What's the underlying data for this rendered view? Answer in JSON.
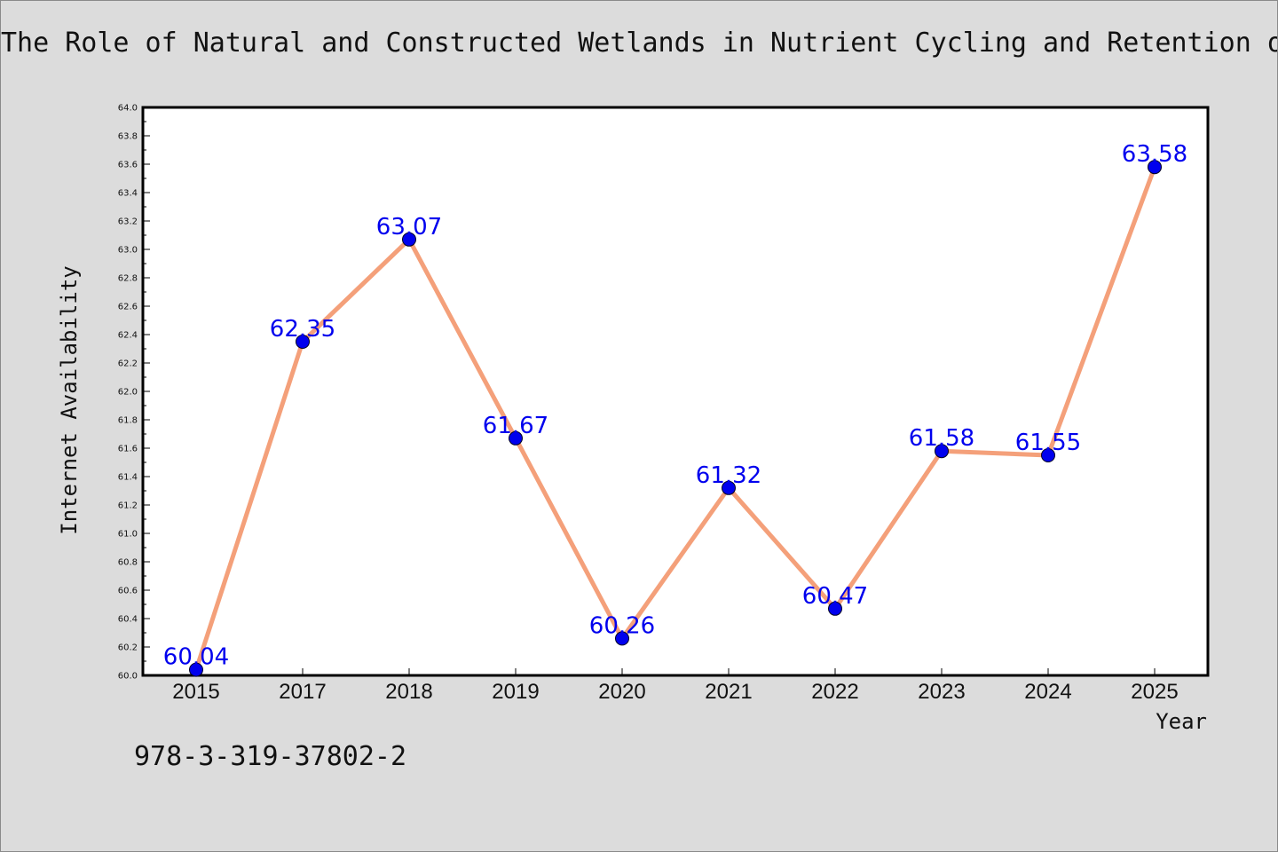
{
  "title": "The Role of Natural and Constructed Wetlands in Nutrient Cycling and Retention o",
  "isbn": "978-3-319-37802-2",
  "chart_data": {
    "type": "line",
    "title": "The Role of Natural and Constructed Wetlands in Nutrient Cycling and Retention o",
    "xlabel": "Year",
    "ylabel": "Internet Availability",
    "categories": [
      "2015",
      "2017",
      "2018",
      "2019",
      "2020",
      "2021",
      "2022",
      "2023",
      "2024",
      "2025"
    ],
    "series": [
      {
        "values": [
          60.04,
          62.35,
          63.07,
          61.67,
          60.26,
          61.32,
          60.47,
          61.58,
          61.55,
          63.58
        ]
      }
    ],
    "data_labels": [
      "60.04",
      "62.35",
      "63.07",
      "61.67",
      "60.26",
      "61.32",
      "60.47",
      "61.58",
      "61.55",
      "63.58"
    ],
    "ylim": [
      60.0,
      64.0
    ],
    "yticks": [
      "60.0",
      "60.2",
      "60.4",
      "60.6",
      "60.8",
      "61.0",
      "61.2",
      "61.4",
      "61.6",
      "61.8",
      "62.0",
      "62.2",
      "62.4",
      "62.6",
      "62.8",
      "63.0",
      "63.2",
      "63.4",
      "63.6",
      "63.8",
      "64.0"
    ],
    "grid": false,
    "legend": "none",
    "colors": {
      "line": "#f4a07a",
      "marker": "#0000ee",
      "label": "#0000ee",
      "plot_background": "#ffffff",
      "page_background": "#dcdcdc"
    }
  }
}
